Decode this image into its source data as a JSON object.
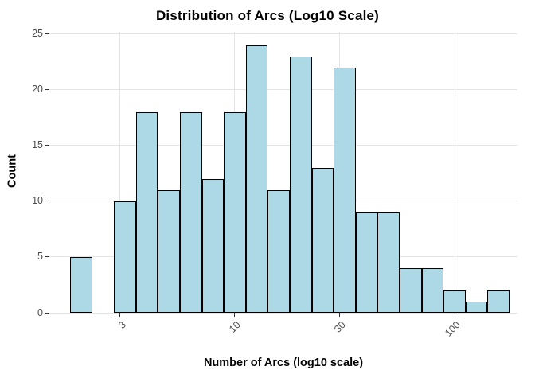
{
  "chart_data": {
    "type": "histogram",
    "title": "Distribution of Arcs (Log10 Scale)",
    "xlabel": "Number of Arcs (log10 scale)",
    "ylabel": "Count",
    "x_scale": "log10",
    "bin_start_log10": 0.25,
    "bin_width_log10": 0.1,
    "counts": [
      5,
      0,
      10,
      18,
      11,
      18,
      12,
      18,
      24,
      11,
      23,
      13,
      22,
      9,
      9,
      4,
      4,
      2,
      1,
      2
    ],
    "x_ticks": [
      3,
      10,
      30,
      100
    ],
    "y_ticks": [
      0,
      5,
      10,
      15,
      20,
      25
    ],
    "x_log10_range": [
      0.156,
      2.286
    ],
    "y_range": [
      0,
      25.2
    ],
    "grid": "on",
    "legend": "none",
    "bar_fill": "#ADD8E6",
    "bar_stroke": "#000000",
    "gridline_color": "#E4E4E4",
    "tick_label_color": "#4D4D4D",
    "axis_tick_color": "#333333",
    "background": "#FFFFFF"
  }
}
